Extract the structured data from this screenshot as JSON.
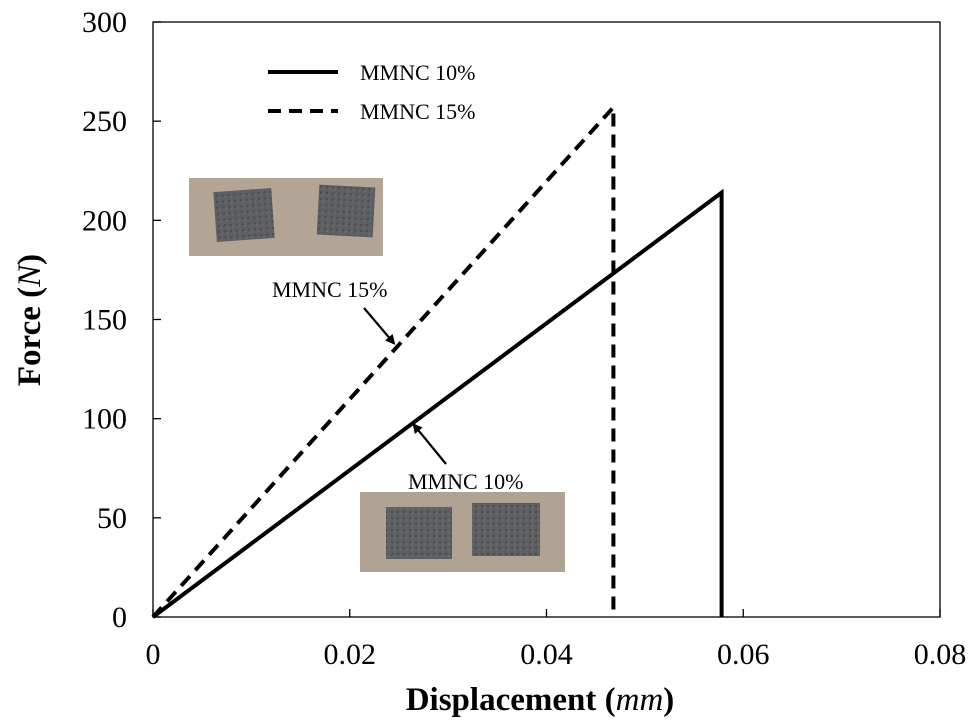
{
  "chart_data": {
    "type": "line",
    "title": "",
    "xlabel": "Displacement",
    "xlabel_unit": "mm",
    "ylabel": "Force",
    "ylabel_unit": "N",
    "xlim": [
      0,
      0.08
    ],
    "ylim": [
      0,
      300
    ],
    "x_ticks": [
      "0",
      "0.02",
      "0.04",
      "0.06",
      "0.08"
    ],
    "y_ticks": [
      "0",
      "50",
      "100",
      "150",
      "200",
      "250",
      "300"
    ],
    "grid": false,
    "legend_position": "top-left",
    "series": [
      {
        "name": "MMNC 10%",
        "line_style": "solid",
        "color": "#000000",
        "points": [
          [
            0,
            0
          ],
          [
            0.0578,
            214
          ],
          [
            0.0578,
            0
          ]
        ]
      },
      {
        "name": "MMNC 15%",
        "line_style": "dashed",
        "color": "#000000",
        "points": [
          [
            0,
            0
          ],
          [
            0.0468,
            257
          ],
          [
            0.0468,
            0
          ]
        ]
      }
    ],
    "annotations": [
      {
        "text": "MMNC 15%",
        "series": "MMNC 15%",
        "arrow_to": [
          0.0245,
          138
        ]
      },
      {
        "text": "MMNC 10%",
        "series": "MMNC 10%",
        "arrow_to": [
          0.0265,
          97
        ]
      }
    ],
    "inset_photos": [
      {
        "description_icon": "specimen-photo-icon",
        "near_series": "MMNC 15%"
      },
      {
        "description_icon": "specimen-photo-icon",
        "near_series": "MMNC 10%"
      }
    ]
  }
}
